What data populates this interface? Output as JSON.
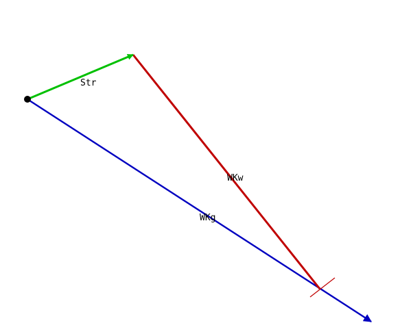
{
  "diagram": {
    "vectors": [
      {
        "id": "str",
        "label": "Str",
        "color": "#00c000"
      },
      {
        "id": "wkw",
        "label": "WKw",
        "color": "#c00000"
      },
      {
        "id": "wkg",
        "label": "WKg",
        "color": "#0000c0"
      }
    ],
    "origin_marker_color": "#000000",
    "tick_marker_color": "#c00000"
  }
}
